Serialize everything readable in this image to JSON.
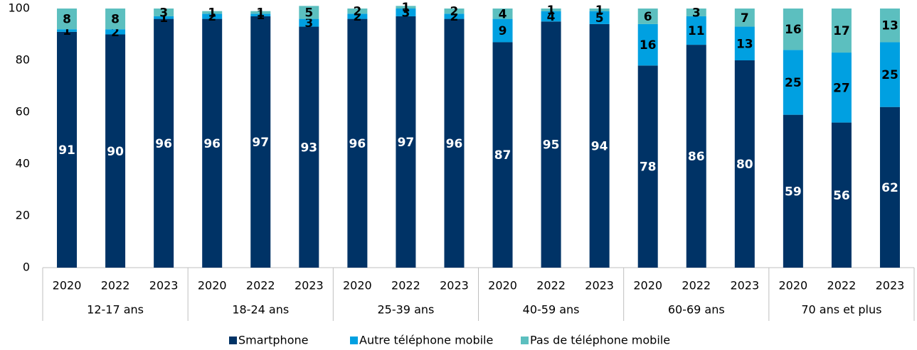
{
  "chart_data": {
    "type": "stacked_bar",
    "categories": [
      "2020",
      "2022",
      "2023",
      "2020",
      "2022",
      "2023",
      "2020",
      "2022",
      "2023",
      "2020",
      "2022",
      "2023",
      "2020",
      "2022",
      "2023",
      "2020",
      "2022",
      "2023"
    ],
    "groups": [
      "12-17 ans",
      "18-24 ans",
      "25-39 ans",
      "40-59 ans",
      "60-69 ans",
      "70 ans et plus"
    ],
    "series": [
      {
        "name": "Smartphone",
        "color": "#003366",
        "values": [
          91,
          90,
          96,
          96,
          97,
          93,
          96,
          97,
          96,
          87,
          95,
          94,
          78,
          86,
          80,
          59,
          56,
          62
        ]
      },
      {
        "name": "Autre téléphone mobile",
        "color": "#00a0e1",
        "values": [
          1,
          2,
          1,
          2,
          1,
          3,
          2,
          3,
          2,
          9,
          4,
          5,
          16,
          11,
          13,
          25,
          27,
          25
        ]
      },
      {
        "name": "Pas de téléphone mobile",
        "color": "#5cbfbf",
        "values": [
          8,
          8,
          3,
          1,
          1,
          5,
          2,
          1,
          2,
          4,
          1,
          1,
          6,
          3,
          7,
          16,
          17,
          13
        ]
      }
    ],
    "ylim": [
      0,
      100
    ],
    "yticks": [
      0,
      20,
      40,
      60,
      80,
      100
    ],
    "grid": false,
    "legend": "bottom"
  }
}
